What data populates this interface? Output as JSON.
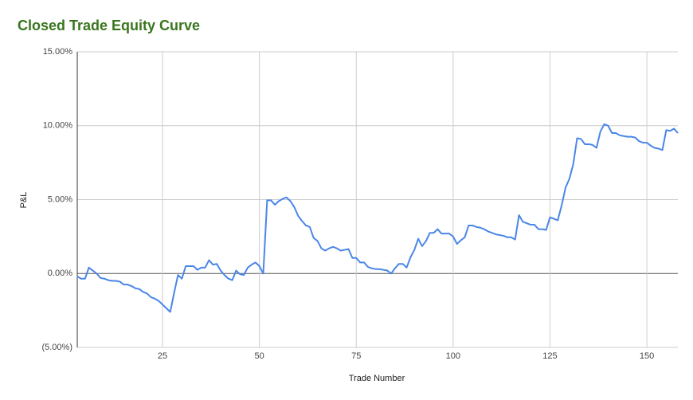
{
  "chart_data": {
    "type": "line",
    "title": "Closed Trade Equity Curve",
    "x_label": "Trade Number",
    "y_label": "P&L",
    "x": [
      3,
      4,
      5,
      6,
      7,
      8,
      9,
      10,
      11,
      12,
      13,
      14,
      15,
      16,
      17,
      18,
      19,
      20,
      21,
      22,
      23,
      24,
      25,
      26,
      27,
      28,
      29,
      30,
      31,
      32,
      33,
      34,
      35,
      36,
      37,
      38,
      39,
      40,
      41,
      42,
      43,
      44,
      45,
      46,
      47,
      48,
      49,
      50,
      51,
      52,
      53,
      54,
      55,
      56,
      57,
      58,
      59,
      60,
      61,
      62,
      63,
      64,
      65,
      66,
      67,
      68,
      69,
      70,
      71,
      72,
      73,
      74,
      75,
      76,
      77,
      78,
      79,
      80,
      81,
      82,
      83,
      84,
      85,
      86,
      87,
      88,
      89,
      90,
      91,
      92,
      93,
      94,
      95,
      96,
      97,
      98,
      99,
      100,
      101,
      102,
      103,
      104,
      105,
      106,
      107,
      108,
      109,
      110,
      111,
      112,
      113,
      114,
      115,
      116,
      117,
      118,
      119,
      120,
      121,
      122,
      123,
      124,
      125,
      126,
      127,
      128,
      129,
      130,
      131,
      132,
      133,
      134,
      135,
      136,
      137,
      138,
      139,
      140,
      141,
      142,
      143,
      144,
      145,
      146,
      147,
      148,
      149,
      150,
      151,
      152,
      153,
      154,
      155,
      156,
      157,
      158
    ],
    "series": [
      {
        "name": "P&L",
        "color": "#4a86e8",
        "values": [
          -0.2,
          -0.35,
          -0.35,
          0.4,
          0.2,
          0.0,
          -0.3,
          -0.35,
          -0.45,
          -0.5,
          -0.5,
          -0.55,
          -0.75,
          -0.75,
          -0.85,
          -1.0,
          -1.05,
          -1.25,
          -1.35,
          -1.6,
          -1.7,
          -1.85,
          -2.1,
          -2.35,
          -2.6,
          -1.3,
          -0.1,
          -0.35,
          0.5,
          0.5,
          0.5,
          0.25,
          0.4,
          0.4,
          0.9,
          0.6,
          0.65,
          0.2,
          -0.1,
          -0.35,
          -0.45,
          0.2,
          -0.05,
          -0.1,
          0.4,
          0.6,
          0.75,
          0.5,
          0.0,
          4.95,
          4.95,
          4.65,
          4.9,
          5.05,
          5.15,
          4.9,
          4.5,
          3.9,
          3.55,
          3.25,
          3.15,
          2.4,
          2.2,
          1.7,
          1.55,
          1.7,
          1.8,
          1.7,
          1.55,
          1.6,
          1.65,
          1.05,
          1.05,
          0.75,
          0.75,
          0.45,
          0.35,
          0.3,
          0.3,
          0.25,
          0.2,
          0.0,
          0.35,
          0.65,
          0.65,
          0.4,
          1.1,
          1.6,
          2.35,
          1.85,
          2.2,
          2.75,
          2.75,
          3.0,
          2.7,
          2.7,
          2.7,
          2.5,
          2.0,
          2.25,
          2.45,
          3.25,
          3.25,
          3.15,
          3.1,
          3.0,
          2.85,
          2.75,
          2.65,
          2.6,
          2.55,
          2.45,
          2.45,
          2.3,
          3.95,
          3.5,
          3.4,
          3.3,
          3.3,
          3.0,
          3.0,
          2.95,
          3.8,
          3.7,
          3.6,
          4.6,
          5.8,
          6.4,
          7.4,
          9.15,
          9.1,
          8.75,
          8.75,
          8.7,
          8.5,
          9.6,
          10.1,
          10.0,
          9.5,
          9.5,
          9.35,
          9.3,
          9.25,
          9.25,
          9.2,
          8.95,
          8.85,
          8.85,
          8.65,
          8.5,
          8.45,
          8.35,
          9.7,
          9.65,
          9.8,
          9.5
        ]
      }
    ],
    "xlim": [
      3,
      158
    ],
    "xticks": [
      25,
      50,
      75,
      100,
      125,
      150
    ],
    "ylim": [
      -5,
      15
    ],
    "yticks": [
      {
        "value": -5,
        "label": "(5.00%)"
      },
      {
        "value": 0,
        "label": "0.00%"
      },
      {
        "value": 5,
        "label": "5.00%"
      },
      {
        "value": 10,
        "label": "10.00%"
      },
      {
        "value": 15,
        "label": "15.00%"
      }
    ],
    "grid": true
  }
}
